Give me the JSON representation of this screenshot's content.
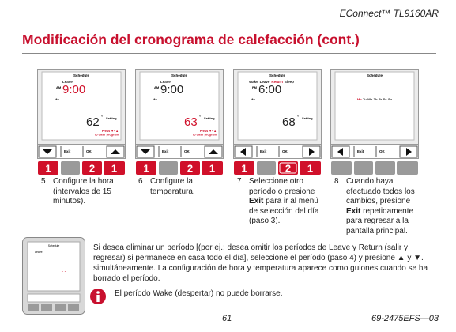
{
  "header": {
    "product": "EConnect™ TL9160AR"
  },
  "title": "Modificación del cronograma de calefacción (cont.)",
  "panels": [
    {
      "schedule": "Schedule",
      "period": [
        {
          "text": "Leave",
          "color": "#222"
        }
      ],
      "ampm": "AM",
      "time": "9:00",
      "time_color": "#d0102a",
      "day": [
        {
          "text": "Mo",
          "color": "#222"
        }
      ],
      "temp": "62",
      "temp_color": "#222",
      "deg": "°",
      "setting": "Setting",
      "clear": [
        "Press ▼+▲",
        "to clear program"
      ],
      "arrows": "updown",
      "exit": "Exit",
      "ok": "OK",
      "keys": [
        {
          "label": "1",
          "color": "#d0102a"
        },
        {
          "color": "#9a9a9a"
        },
        {
          "label": "2",
          "color": "#d0102a"
        },
        {
          "label": "1",
          "color": "#d0102a"
        }
      ]
    },
    {
      "schedule": "Schedule",
      "period": [
        {
          "text": "Leave",
          "color": "#222"
        }
      ],
      "ampm": "AM",
      "time": "9:00",
      "time_color": "#222",
      "day": [
        {
          "text": "Mo",
          "color": "#222"
        }
      ],
      "temp": "63",
      "temp_color": "#d0102a",
      "deg": "°",
      "setting": "Setting",
      "clear": [
        "Press ▼+▲",
        "to clear program"
      ],
      "arrows": "updown",
      "exit": "Exit",
      "ok": "OK",
      "keys": [
        {
          "label": "1",
          "color": "#d0102a"
        },
        {
          "color": "#9a9a9a"
        },
        {
          "label": "2",
          "color": "#d0102a"
        },
        {
          "label": "1",
          "color": "#d0102a"
        }
      ]
    },
    {
      "schedule": "Schedule",
      "period": [
        {
          "text": "Wake",
          "color": "#222"
        },
        {
          "text": "Leave",
          "color": "#222"
        },
        {
          "text": "Return",
          "color": "#d0102a"
        },
        {
          "text": "Sleep",
          "color": "#222"
        }
      ],
      "ampm": "PM",
      "time": "6:00",
      "time_color": "#222",
      "day": [
        {
          "text": "Mo",
          "color": "#222"
        }
      ],
      "temp": "68",
      "temp_color": "#222",
      "deg": "°",
      "setting": "Setting",
      "arrows": "leftright",
      "exit": "Exit",
      "ok": "OK",
      "keys": [
        {
          "label": "1",
          "color": "#d0102a"
        },
        {
          "color": "#9a9a9a"
        },
        {
          "label": "2",
          "color": "#d0102a",
          "ring": true
        },
        {
          "label": "1",
          "color": "#d0102a"
        }
      ]
    },
    {
      "schedule": "Schedule",
      "days": [
        {
          "text": "Mo",
          "color": "#d0102a"
        },
        {
          "text": "Tu",
          "color": "#222"
        },
        {
          "text": "We",
          "color": "#222"
        },
        {
          "text": "Th",
          "color": "#222"
        },
        {
          "text": "Fr",
          "color": "#222"
        },
        {
          "text": "Sa",
          "color": "#222"
        },
        {
          "text": "Su",
          "color": "#222"
        }
      ],
      "arrows": "leftright",
      "exit": "Exit",
      "ok": "OK",
      "keys": [
        {
          "color": "#9a9a9a"
        },
        {
          "color": "#9a9a9a"
        },
        {
          "color": "#9a9a9a"
        },
        {
          "color": "#9a9a9a"
        }
      ]
    }
  ],
  "steps": [
    {
      "number": "5",
      "parts": [
        {
          "text": "Configure la hora (intervalos de 15 minutos)."
        }
      ]
    },
    {
      "number": "6",
      "parts": [
        {
          "text": "Configure la temperatura."
        }
      ]
    },
    {
      "number": "7",
      "parts": [
        {
          "text": "Seleccione otro período o presione "
        },
        {
          "text": "Exit",
          "bold": true
        },
        {
          "text": " para ir al menú de selección del día (paso 3)."
        }
      ]
    },
    {
      "number": "8",
      "parts": [
        {
          "text": "Cuando haya efectuado todos los cambios, presione "
        },
        {
          "text": "Exit",
          "bold": true
        },
        {
          "text": " repetidamente para regresar a la pantalla principal."
        }
      ]
    }
  ],
  "mini_screen": {
    "schedule": "Schedule",
    "period": "Leave",
    "time": "- - -",
    "temp": "- -"
  },
  "note": "Si desea eliminar un período [(por ej.: desea omitir los períodos de Leave y Return (salir y regresar) si permanece en casa todo el día], seleccione el período (paso 4) y presione ▲ y ▼. simultáneamente. La configuración de hora y temperatura aparece como guiones cuando se ha borrado el período.",
  "warning": "El período Wake (despertar) no puede borrarse.",
  "footer": {
    "page": "61",
    "doc": "69-2475EFS—03"
  }
}
